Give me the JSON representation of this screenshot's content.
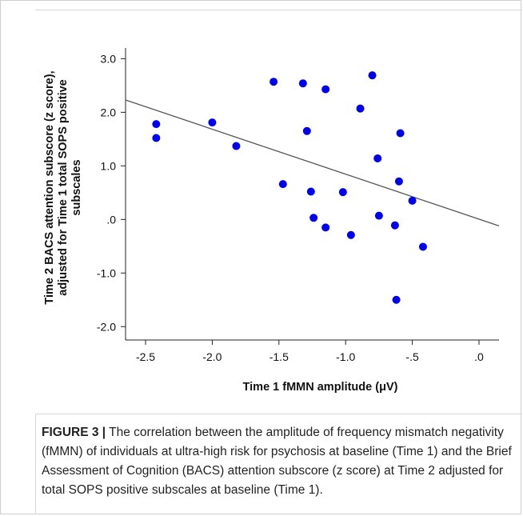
{
  "chart_data": {
    "type": "scatter",
    "xlabel": "Time 1 fMMN amplitude (μV)",
    "ylabel_lines": [
      "Time 2 BACS attention subscore (z score),",
      "adjusted for Time 1 total SOPS positive",
      "subscales"
    ],
    "x_ticks": [
      "-2.5",
      "-2.0",
      "-1.5",
      "-1.0",
      "-.5",
      ".0"
    ],
    "x_tick_values": [
      -2.5,
      -2.0,
      -1.5,
      -1.0,
      -0.5,
      0.0
    ],
    "y_ticks": [
      "3.0",
      "2.0",
      "1.0",
      ".0",
      "-1.0",
      "-2.0"
    ],
    "y_tick_values": [
      3.0,
      2.0,
      1.0,
      0.0,
      -1.0,
      -2.0
    ],
    "xlim": [
      -2.65,
      0.15
    ],
    "ylim": [
      -2.25,
      3.2
    ],
    "grid": false,
    "point_color": "#0000ee",
    "line_color": "#555555",
    "points": [
      {
        "x": -2.42,
        "y": 1.78
      },
      {
        "x": -2.42,
        "y": 1.52
      },
      {
        "x": -2.0,
        "y": 1.81
      },
      {
        "x": -1.82,
        "y": 1.37
      },
      {
        "x": -1.54,
        "y": 2.57
      },
      {
        "x": -1.47,
        "y": 0.66
      },
      {
        "x": -1.32,
        "y": 2.54
      },
      {
        "x": -1.29,
        "y": 1.65
      },
      {
        "x": -1.26,
        "y": 0.52
      },
      {
        "x": -1.24,
        "y": 0.03
      },
      {
        "x": -1.15,
        "y": 2.43
      },
      {
        "x": -1.15,
        "y": -0.15
      },
      {
        "x": -1.02,
        "y": 0.51
      },
      {
        "x": -0.96,
        "y": -0.29
      },
      {
        "x": -0.89,
        "y": 2.07
      },
      {
        "x": -0.8,
        "y": 2.69
      },
      {
        "x": -0.76,
        "y": 1.14
      },
      {
        "x": -0.75,
        "y": 0.07
      },
      {
        "x": -0.63,
        "y": -0.11
      },
      {
        "x": -0.62,
        "y": -1.5
      },
      {
        "x": -0.6,
        "y": 0.71
      },
      {
        "x": -0.59,
        "y": 1.61
      },
      {
        "x": -0.5,
        "y": 0.35
      },
      {
        "x": -0.42,
        "y": -0.51
      }
    ],
    "fit_line": {
      "x": [
        -2.65,
        0.15
      ],
      "y": [
        2.23,
        -0.12
      ]
    }
  },
  "caption": {
    "label": "FIGURE 3 |",
    "text": "The correlation between the amplitude of frequency mismatch negativity (fMMN) of individuals at ultra-high risk for psychosis at baseline (Time 1) and the Brief Assessment of Cognition (BACS) attention subscore (z score) at Time 2 adjusted for total SOPS positive subscales at baseline (Time 1)."
  }
}
